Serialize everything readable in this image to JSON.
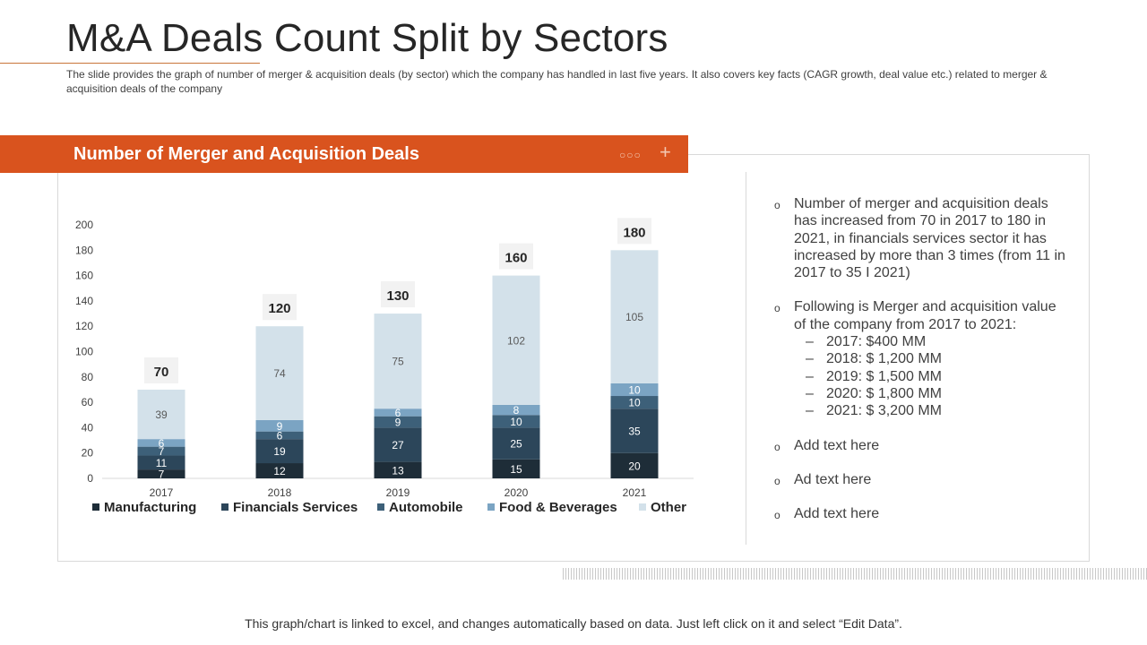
{
  "page": {
    "title": "M&A Deals Count Split by Sectors",
    "subtitle": "The slide provides the graph of number of merger & acquisition deals (by sector) which the company has handled in last five years. It also covers key facts (CAGR growth, deal value etc.) related to merger & acquisition deals of the company",
    "footer": "This graph/chart is linked to excel, and changes automatically based on data. Just left click on it and select “Edit Data”."
  },
  "panel": {
    "title": "Number of Merger and Acquisition Deals",
    "dots_icon": "○○○",
    "plus_icon": "+"
  },
  "notes": {
    "bullet_icon": "o",
    "dash_icon": "–",
    "items": [
      {
        "text": "Number of merger and acquisition deals has increased from 70 in 2017 to 180 in 2021, in financials services sector it has increased by more than 3 times (from 11 in 2017 to 35 I 2021)"
      },
      {
        "text": "Following is Merger and acquisition value of the company from 2017 to 2021:",
        "sub": [
          "2017: $400 MM",
          "2018: $ 1,200 MM",
          "2019: $ 1,500 MM",
          "2020: $ 1,800 MM",
          "2021: $ 3,200 MM"
        ]
      },
      {
        "text": "Add text here"
      },
      {
        "text": "Ad text here"
      },
      {
        "text": "Add text here"
      }
    ]
  },
  "chart_data": {
    "type": "bar",
    "stacked": true,
    "categories": [
      "2017",
      "2018",
      "2019",
      "2020",
      "2021"
    ],
    "series": [
      {
        "name": "Manufacturing",
        "color": "#1e2d38",
        "label_color": "#ffffff",
        "values": [
          7,
          12,
          13,
          15,
          20
        ]
      },
      {
        "name": "Financials Services",
        "color": "#2c465a",
        "label_color": "#ffffff",
        "values": [
          11,
          19,
          27,
          25,
          35
        ]
      },
      {
        "name": "Automobile",
        "color": "#3d6079",
        "label_color": "#ffffff",
        "values": [
          7,
          6,
          9,
          10,
          10
        ]
      },
      {
        "name": "Food & Beverages",
        "color": "#7ba4c3",
        "label_color": "#ffffff",
        "values": [
          6,
          9,
          6,
          8,
          10
        ]
      },
      {
        "name": "Other",
        "color": "#d3e1ea",
        "label_color": "#595959",
        "values": [
          39,
          74,
          75,
          102,
          105
        ]
      }
    ],
    "totals": [
      70,
      120,
      130,
      160,
      180
    ],
    "ylim": [
      0,
      200
    ],
    "yticks": [
      0,
      20,
      40,
      60,
      80,
      100,
      120,
      140,
      160,
      180,
      200
    ],
    "legend_position": "bottom",
    "grid": false
  }
}
